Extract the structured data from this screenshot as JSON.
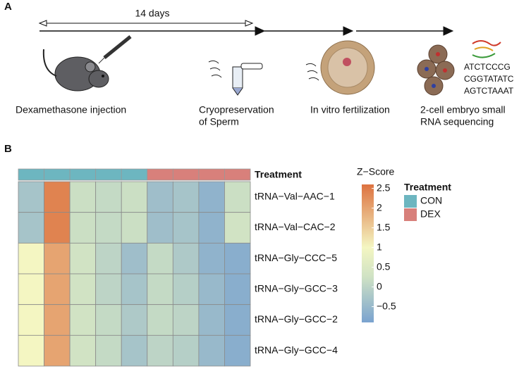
{
  "panel_a": {
    "label": "A",
    "duration": "14 days",
    "steps": [
      [
        "Dexamethasone injection"
      ],
      [
        "Cryopreservation",
        "of Sperm"
      ],
      [
        "In vitro fertilization"
      ],
      [
        "2-cell embryo small",
        "RNA sequencing"
      ]
    ],
    "sequences": [
      "ATCTCCCG",
      "CGGTATATC",
      "AGTCTAAAT"
    ]
  },
  "panel_b_label": "B",
  "chart_data": {
    "type": "heatmap",
    "annotation_label": "Treatment",
    "rows": [
      "tRNA−Val−AAC−1",
      "tRNA−Val−CAC−2",
      "tRNA−Gly−CCC−5",
      "tRNA−Gly−GCC−3",
      "tRNA−Gly−GCC−2",
      "tRNA−Gly−GCC−4"
    ],
    "values": [
      [
        -0.3,
        2.4,
        0.2,
        0.1,
        0.2,
        -0.4,
        -0.3,
        -0.6,
        0.2
      ],
      [
        -0.3,
        2.4,
        0.2,
        0.1,
        0.2,
        -0.4,
        -0.3,
        -0.6,
        0.3
      ],
      [
        1.0,
        2.0,
        0.3,
        0.0,
        -0.4,
        0.1,
        -0.2,
        -0.6,
        -0.7
      ],
      [
        1.0,
        2.0,
        0.3,
        0.0,
        -0.3,
        0.1,
        -0.1,
        -0.5,
        -0.7
      ],
      [
        1.0,
        2.0,
        0.3,
        0.1,
        -0.2,
        0.1,
        0.0,
        -0.5,
        -0.7
      ],
      [
        1.0,
        2.0,
        0.3,
        0.1,
        -0.3,
        0.0,
        -0.1,
        -0.5,
        -0.7
      ]
    ],
    "treatment": [
      "CON",
      "CON",
      "CON",
      "CON",
      "CON",
      "DEX",
      "DEX",
      "DEX",
      "DEX"
    ],
    "legend_title": "Treatment",
    "groups": [
      {
        "name": "CON",
        "color": "#6db6c0"
      },
      {
        "name": "DEX",
        "color": "#d8807b"
      }
    ],
    "colorbar_title": "Z−Score",
    "zlim": [
      -0.9,
      2.6
    ],
    "zticks": [
      2.5,
      2,
      1.5,
      1,
      0.5,
      0,
      {
        "value": -0.5,
        "label": "−0.5"
      }
    ],
    "colorscale": [
      [
        -0.9,
        "#7aa3cf"
      ],
      [
        0.25,
        "#cfe2c4"
      ],
      [
        1,
        "#f4f6c2"
      ],
      [
        2.6,
        "#dd7240"
      ]
    ]
  }
}
